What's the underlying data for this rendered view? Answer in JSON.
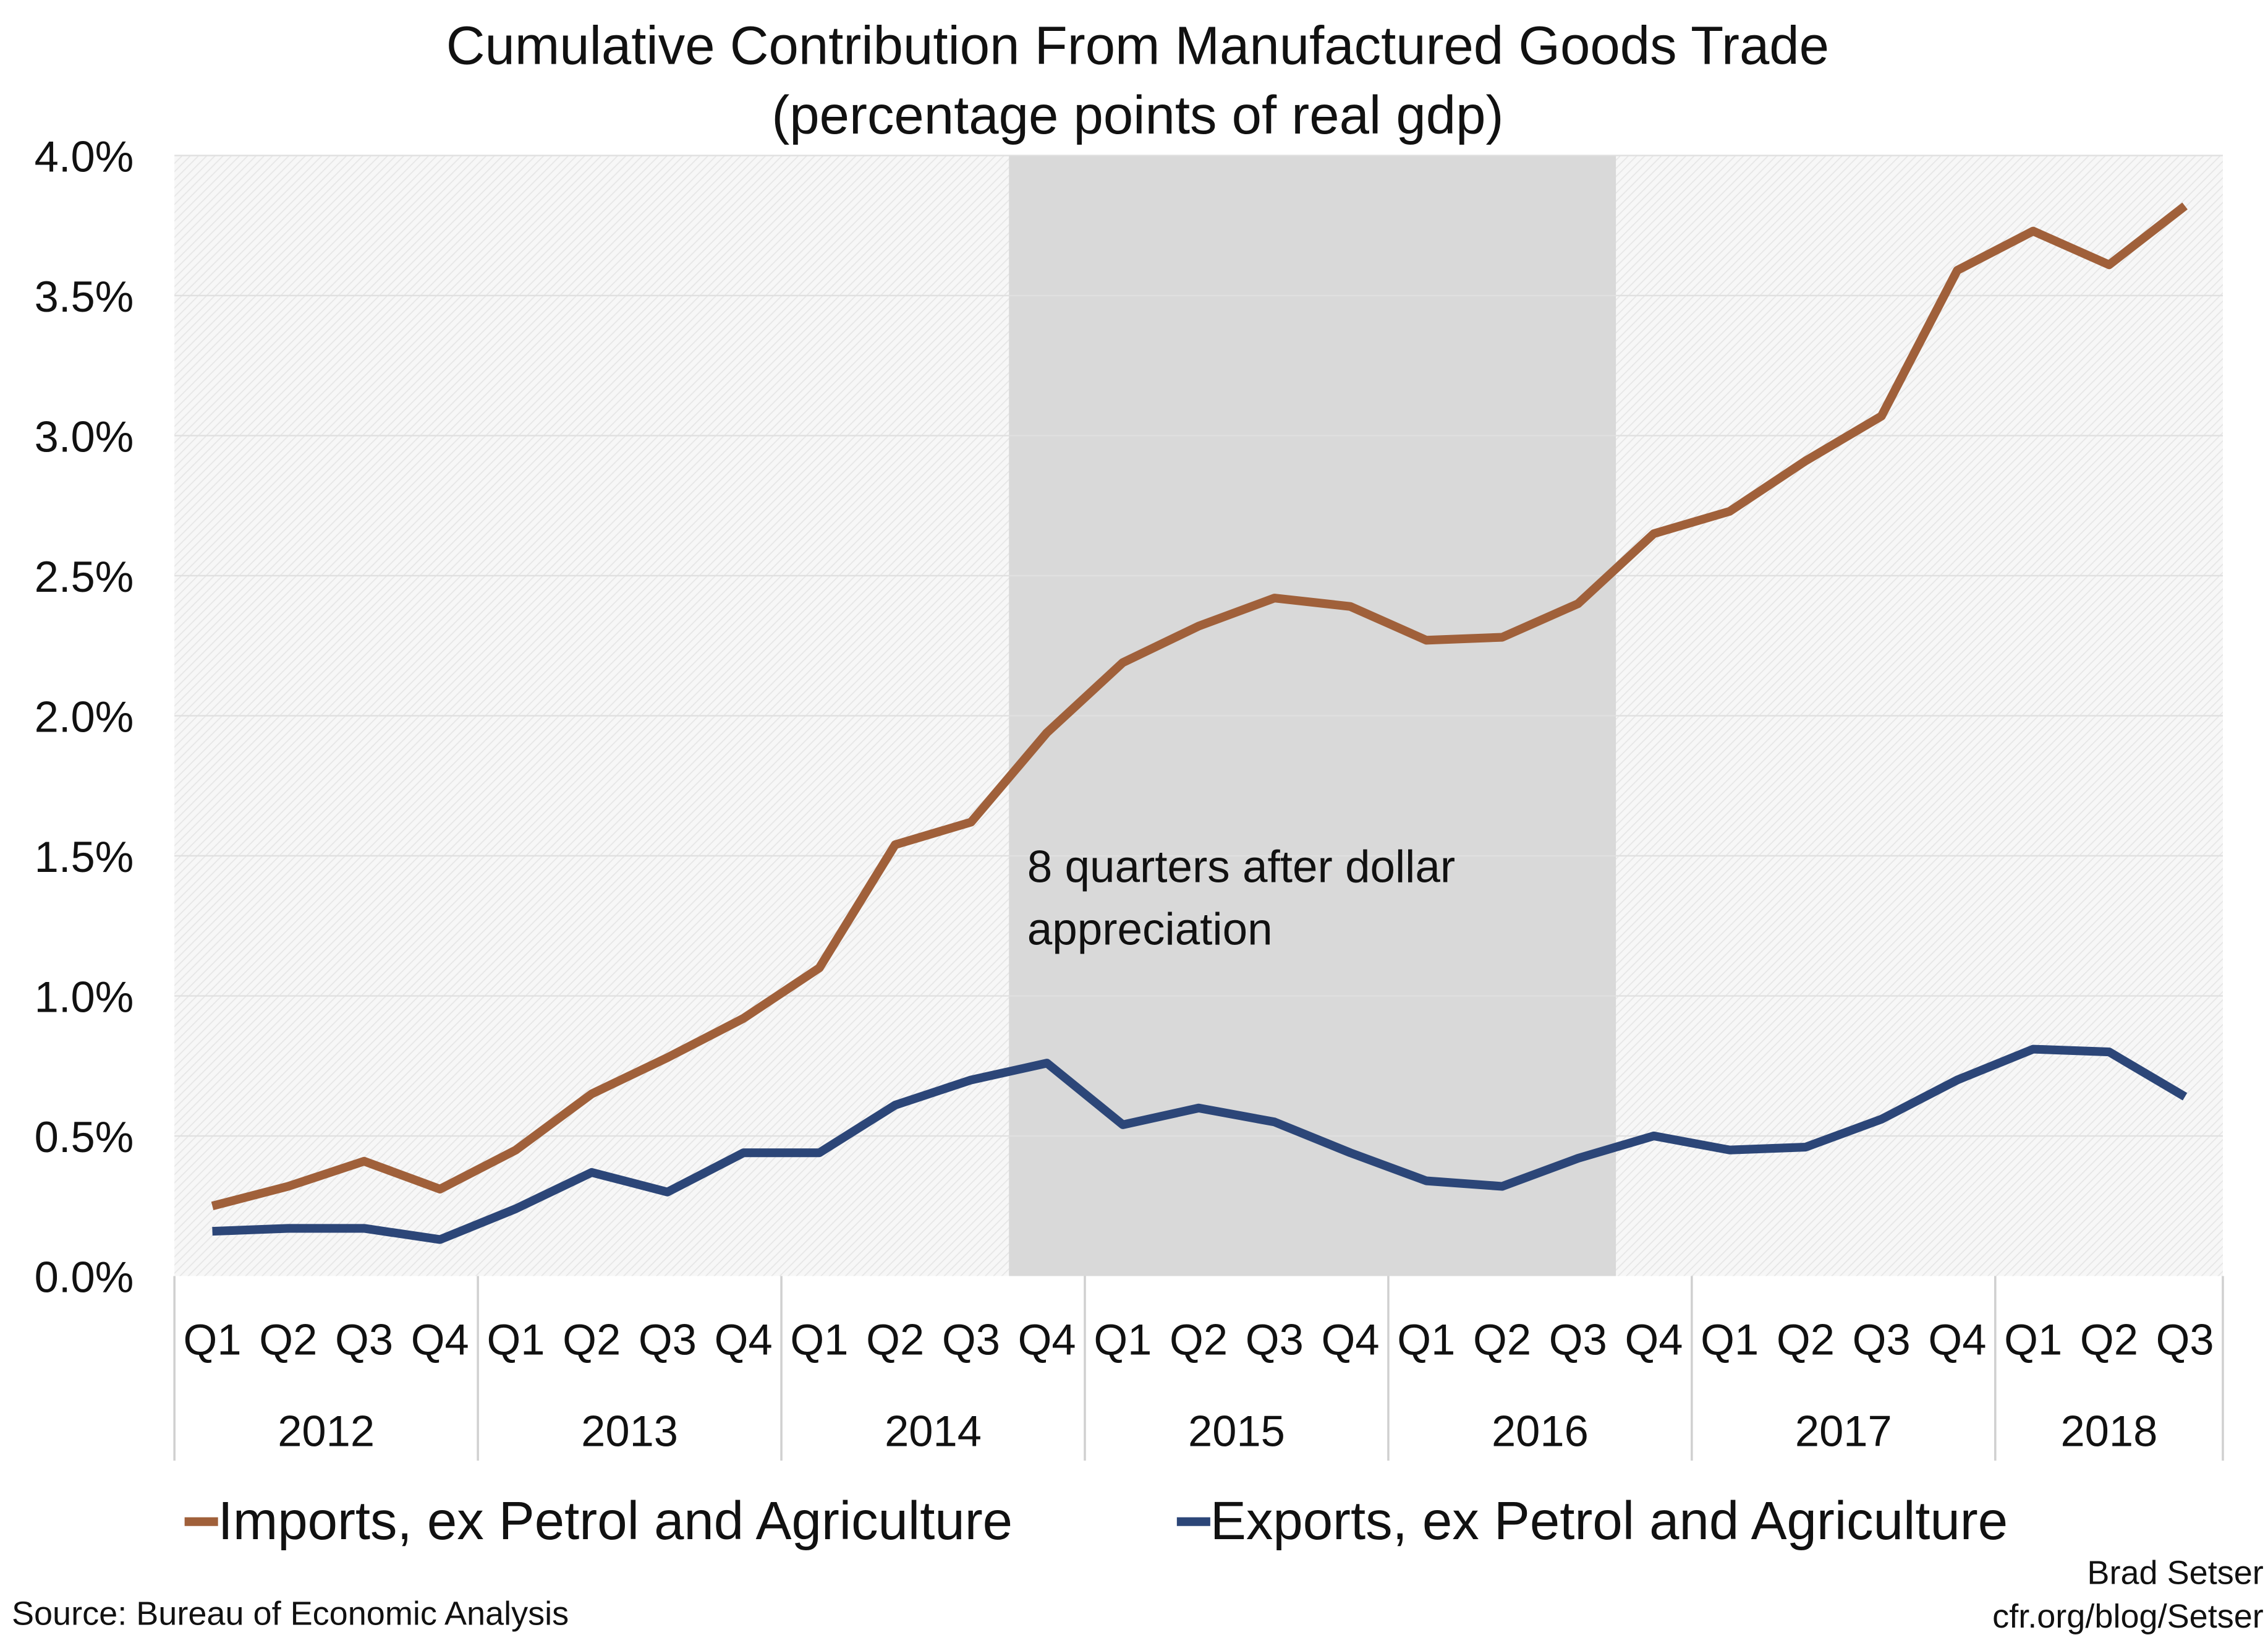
{
  "chart_data": {
    "type": "line",
    "title": "Cumulative Contribution From Manufactured Goods Trade",
    "subtitle": "(percentage points of real gdp)",
    "xlabel": "",
    "ylabel": "",
    "ylim": [
      0,
      4.0
    ],
    "yticks": [
      "0.0%",
      "0.5%",
      "1.0%",
      "1.5%",
      "2.0%",
      "2.5%",
      "3.0%",
      "3.5%",
      "4.0%"
    ],
    "grid": true,
    "legend_placement": "bottom",
    "years": [
      {
        "label": "2012",
        "quarters": [
          "Q1",
          "Q2",
          "Q3",
          "Q4"
        ]
      },
      {
        "label": "2013",
        "quarters": [
          "Q1",
          "Q2",
          "Q3",
          "Q4"
        ]
      },
      {
        "label": "2014",
        "quarters": [
          "Q1",
          "Q2",
          "Q3",
          "Q4"
        ]
      },
      {
        "label": "2015",
        "quarters": [
          "Q1",
          "Q2",
          "Q3",
          "Q4"
        ]
      },
      {
        "label": "2016",
        "quarters": [
          "Q1",
          "Q2",
          "Q3",
          "Q4"
        ]
      },
      {
        "label": "2017",
        "quarters": [
          "Q1",
          "Q2",
          "Q3",
          "Q4"
        ]
      },
      {
        "label": "2018",
        "quarters": [
          "Q1",
          "Q2",
          "Q3"
        ]
      }
    ],
    "series": [
      {
        "name": "Imports, ex Petrol and Agriculture",
        "color": "#a0603a",
        "values": [
          0.25,
          0.32,
          0.41,
          0.31,
          0.45,
          0.65,
          0.78,
          0.92,
          1.1,
          1.54,
          1.62,
          1.94,
          2.19,
          2.32,
          2.42,
          2.39,
          2.27,
          2.28,
          2.4,
          2.65,
          2.73,
          2.91,
          3.07,
          3.59,
          3.73,
          3.61,
          3.82
        ]
      },
      {
        "name": "Exports, ex Petrol and Agriculture",
        "color": "#2c4678",
        "values": [
          0.16,
          0.17,
          0.17,
          0.13,
          0.24,
          0.37,
          0.3,
          0.44,
          0.44,
          0.61,
          0.7,
          0.76,
          0.54,
          0.6,
          0.55,
          0.44,
          0.34,
          0.32,
          0.42,
          0.5,
          0.45,
          0.46,
          0.56,
          0.7,
          0.81,
          0.8,
          0.64
        ]
      }
    ],
    "shaded_region": {
      "from": "2014 Q3-Q4",
      "to": "2016 Q3-Q4",
      "color": "#d9d9d9",
      "annotation": [
        "8 quarters after dollar",
        "appreciation"
      ]
    }
  },
  "footer": {
    "source": "Source: Bureau of Economic Analysis",
    "author": "Brad Setser",
    "url": "cfr.org/blog/Setser"
  }
}
